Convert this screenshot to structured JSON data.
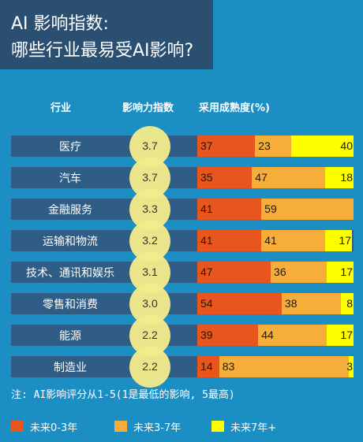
{
  "title": {
    "line1": "AI 影响指数:",
    "line2": "哪些行业最易受AI影响?"
  },
  "headers": {
    "industry": "行业",
    "impact": "影响力指数",
    "adoption": "采用成熟度(%)"
  },
  "note": "注: AI影响评分从1-5(1是最低的影响, 5最高)",
  "colors": {
    "background": "#1b8fc4",
    "title_box": "#2b4f70",
    "row": "#2f5d86",
    "circle": "#f4ec8a",
    "seg0": "#e8561e",
    "seg1": "#f6ad3a",
    "seg2": "#ffff00"
  },
  "chart_data": {
    "type": "bar",
    "stacked": true,
    "categories": [
      "医疗",
      "汽车",
      "金融服务",
      "运输和物流",
      "技术、通讯和娱乐",
      "零售和消费",
      "能源",
      "制造业"
    ],
    "impact_index": [
      "3.7",
      "3.7",
      "3.3",
      "3.2",
      "3.1",
      "3.0",
      "2.2",
      "2.2"
    ],
    "series": [
      {
        "name": "未来0-3年",
        "color": "#e8561e",
        "values": [
          37,
          35,
          41,
          41,
          47,
          54,
          39,
          14
        ]
      },
      {
        "name": "未来3-7年",
        "color": "#f6ad3a",
        "values": [
          23,
          47,
          59,
          41,
          36,
          38,
          44,
          83
        ]
      },
      {
        "name": "未来7年+",
        "color": "#ffff00",
        "values": [
          40,
          18,
          0,
          17,
          17,
          8,
          17,
          3
        ]
      }
    ],
    "xlim": [
      0,
      100
    ]
  }
}
